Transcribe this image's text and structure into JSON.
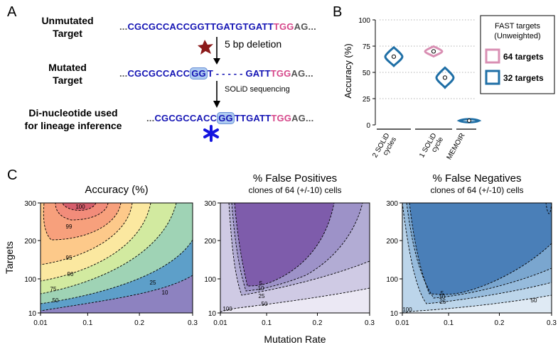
{
  "panel_a": {
    "letter": "A",
    "row1_label_line1": "Unmutated",
    "row1_label_line2": "Target",
    "row1_seq": {
      "pre": "...",
      "blue": "CGCGCCACCGGTTGATGTGATT",
      "pink": "TGG",
      "post": "AG..."
    },
    "deletion_text": "5 bp deletion",
    "row2_label_line1": "Mutated",
    "row2_label_line2": "Target",
    "row2_seq": {
      "pre": "...",
      "blue1": "CGCGCCACC",
      "hl": "GG",
      "blue2": "T",
      "dashes": "- - - - -",
      "blue3": "GATT",
      "pink": "TGG",
      "post": "AG..."
    },
    "sequencing_text": "SOLiD sequencing",
    "row3_label_line1": "Di-nucleotide used",
    "row3_label_line2": "for lineage inference",
    "row3_seq": {
      "pre": "...",
      "blue1": "CGCGCCACC",
      "hl": "GG",
      "blue2": "TTGATT",
      "pink": "TGG",
      "post": "AG..."
    },
    "colors": {
      "blue": "#1414b4",
      "pink": "#d6478a",
      "star": "#8b1a1a"
    }
  },
  "panel_b": {
    "letter": "B",
    "chart_data": {
      "type": "violin",
      "ylabel": "Accuracy (%)",
      "ylim": [
        0,
        100
      ],
      "yticks": [
        0,
        25,
        50,
        75,
        100
      ],
      "groups": [
        "2 SOLiD cycles",
        "1 SOLiD cycle",
        "MEMOIR"
      ],
      "group_label_lines": [
        [
          "2 SOLiD",
          "cycles"
        ],
        [
          "1 SOLiD",
          "cycle"
        ],
        [
          "MEMOIR"
        ]
      ],
      "series": [
        {
          "name": "64 targets",
          "color": "#d98fb3",
          "points": [
            {
              "group": "1 SOLiD cycle",
              "median": 70
            }
          ]
        },
        {
          "name": "32 targets",
          "color": "#1f77b4",
          "points": [
            {
              "group": "2 SOLiD cycles",
              "median": 65
            },
            {
              "group": "1 SOLiD cycle",
              "median": 45
            },
            {
              "group": "MEMOIR",
              "median": 4
            }
          ]
        }
      ],
      "legend_title_line1": "FAST targets",
      "legend_title_line2": "(Unweighted)"
    }
  },
  "panel_c": {
    "letter": "C",
    "ylabel": "Targets",
    "xlabel": "Mutation Rate",
    "chart_data": [
      {
        "type": "contour",
        "title": "Accuracy (%)",
        "subtitle": "",
        "xticks": [
          "0.01",
          "0.1",
          "0.2",
          "0.3"
        ],
        "yticks": [
          "10",
          "100",
          "200",
          "300"
        ],
        "contour_labels": [
          "100",
          "99",
          "95",
          "90",
          "75",
          "50",
          "25",
          "10"
        ]
      },
      {
        "type": "contour",
        "title": "% False Positives",
        "subtitle": "clones of 64 (+/-10) cells",
        "xticks": [
          "0.01",
          "0.1",
          "0.2",
          "0.3"
        ],
        "yticks": [
          "10",
          "100",
          "200",
          "300"
        ],
        "contour_labels": [
          "5",
          "10",
          "25",
          "50",
          "100"
        ]
      },
      {
        "type": "contour",
        "title": "% False Negatives",
        "subtitle": "clones of 64 (+/-10) cells",
        "xticks": [
          "0.01",
          "0.1",
          "0.2",
          "0.3"
        ],
        "yticks": [
          "10",
          "100",
          "200",
          "300"
        ],
        "contour_labels": [
          "5",
          "10",
          "25",
          "50",
          "100"
        ]
      }
    ]
  }
}
